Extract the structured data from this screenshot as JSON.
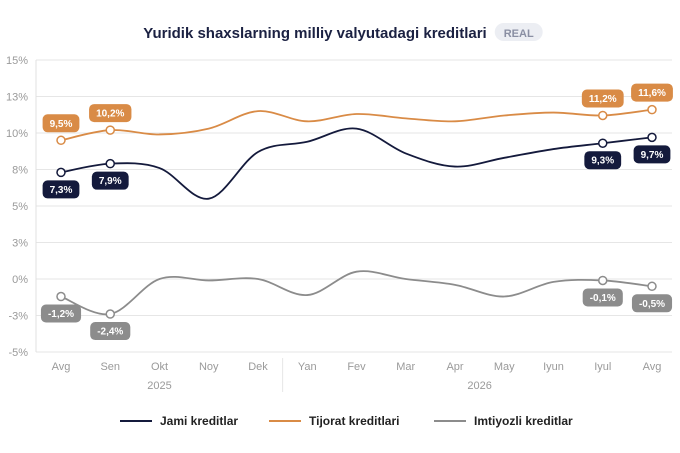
{
  "chart_data": {
    "type": "line",
    "title": "Yuridik shaxslarning milliy valyutadagi kreditlari",
    "tag": "REAL",
    "categories": [
      "Avg",
      "Sen",
      "Okt",
      "Noy",
      "Dek",
      "Yan",
      "Fev",
      "Mar",
      "Apr",
      "May",
      "Iyun",
      "Iyul",
      "Avg"
    ],
    "year_groups": [
      {
        "label": "2025",
        "from": 0,
        "to": 4
      },
      {
        "label": "2026",
        "from": 5,
        "to": 12
      }
    ],
    "y_ticks": [
      "15%",
      "13%",
      "10%",
      "8%",
      "5%",
      "3%",
      "0%",
      "-3%",
      "-5%"
    ],
    "ylim": [
      -5,
      15
    ],
    "grid": true,
    "legend_position": "bottom",
    "series": [
      {
        "name": "Jami kreditlar",
        "color": "#141a3c",
        "values": [
          7.3,
          7.9,
          7.6,
          5.5,
          8.7,
          9.4,
          10.3,
          8.6,
          7.7,
          8.3,
          8.9,
          9.3,
          9.7
        ],
        "labels": [
          {
            "index": 0,
            "text": "7,3%",
            "position": "below"
          },
          {
            "index": 1,
            "text": "7,9%",
            "position": "below"
          },
          {
            "index": 11,
            "text": "9,3%",
            "position": "below"
          },
          {
            "index": 12,
            "text": "9,7%",
            "position": "below"
          }
        ]
      },
      {
        "name": "Tijorat kreditlari",
        "color": "#d98b46",
        "values": [
          9.5,
          10.2,
          9.9,
          10.3,
          11.5,
          10.8,
          11.3,
          11.0,
          10.8,
          11.2,
          11.4,
          11.2,
          11.6
        ],
        "labels": [
          {
            "index": 0,
            "text": "9,5%",
            "position": "above"
          },
          {
            "index": 1,
            "text": "10,2%",
            "position": "above"
          },
          {
            "index": 11,
            "text": "11,2%",
            "position": "above"
          },
          {
            "index": 12,
            "text": "11,6%",
            "position": "above"
          }
        ]
      },
      {
        "name": "Imtiyozli kreditlar",
        "color": "#8c8c8c",
        "values": [
          -1.2,
          -2.4,
          0.0,
          -0.1,
          0.0,
          -1.1,
          0.5,
          0.0,
          -0.4,
          -1.2,
          -0.2,
          -0.1,
          -0.5
        ],
        "labels": [
          {
            "index": 0,
            "text": "-1,2%",
            "position": "below"
          },
          {
            "index": 1,
            "text": "-2,4%",
            "position": "below"
          },
          {
            "index": 11,
            "text": "-0,1%",
            "position": "below"
          },
          {
            "index": 12,
            "text": "-0,5%",
            "position": "below"
          }
        ]
      }
    ]
  }
}
